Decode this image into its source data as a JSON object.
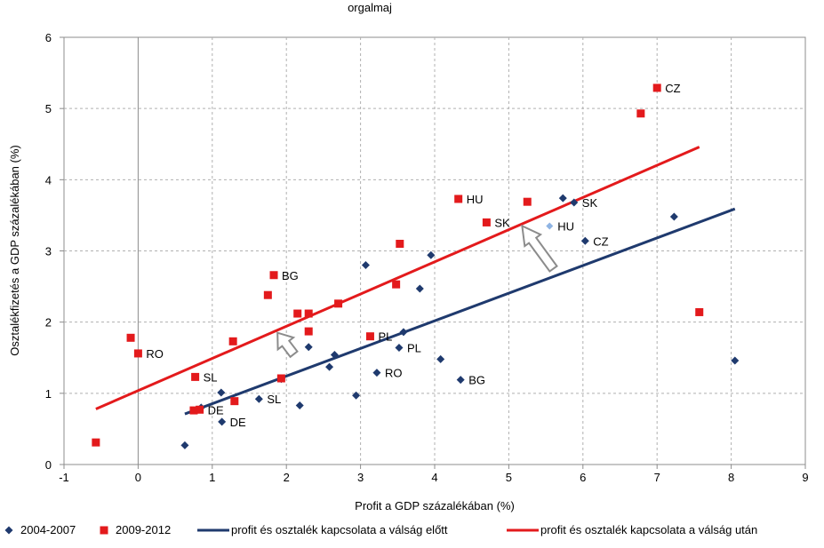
{
  "header": {
    "title_fragment": "orgalmaj"
  },
  "chart_data": {
    "type": "scatter",
    "title": "",
    "xlabel": "Profit a GDP százalékában (%)",
    "ylabel": "Osztalékfizetés a GDP százalékában (%)",
    "xlim": [
      -1,
      9
    ],
    "ylim": [
      0,
      6
    ],
    "x_ticks": [
      "-1",
      "0",
      "1",
      "2",
      "3",
      "4",
      "5",
      "6",
      "7",
      "8",
      "9"
    ],
    "y_ticks": [
      "0",
      "1",
      "2",
      "3",
      "4",
      "5",
      "6"
    ],
    "grid": true,
    "grid_style": "dashed",
    "legend_position": "bottom",
    "series": [
      {
        "name": "2004-2007",
        "marker": "diamond",
        "color": "#1f3a6e",
        "points": [
          {
            "x": 0.63,
            "y": 0.27,
            "label": ""
          },
          {
            "x": 0.85,
            "y": 0.8,
            "label": ""
          },
          {
            "x": 1.13,
            "y": 0.6,
            "label": "DE"
          },
          {
            "x": 1.12,
            "y": 1.01,
            "label": ""
          },
          {
            "x": 1.63,
            "y": 0.92,
            "label": "SL"
          },
          {
            "x": 2.18,
            "y": 0.83,
            "label": ""
          },
          {
            "x": 1.93,
            "y": 1.2,
            "label": ""
          },
          {
            "x": 2.3,
            "y": 1.65,
            "label": ""
          },
          {
            "x": 2.58,
            "y": 1.37,
            "label": ""
          },
          {
            "x": 2.65,
            "y": 1.54,
            "label": ""
          },
          {
            "x": 2.94,
            "y": 0.97,
            "label": ""
          },
          {
            "x": 3.07,
            "y": 2.8,
            "label": ""
          },
          {
            "x": 3.22,
            "y": 1.29,
            "label": "RO"
          },
          {
            "x": 3.52,
            "y": 1.64,
            "label": "PL"
          },
          {
            "x": 3.58,
            "y": 1.86,
            "label": ""
          },
          {
            "x": 3.8,
            "y": 2.47,
            "label": ""
          },
          {
            "x": 3.95,
            "y": 2.94,
            "label": ""
          },
          {
            "x": 4.08,
            "y": 1.48,
            "label": ""
          },
          {
            "x": 4.35,
            "y": 1.19,
            "label": "BG"
          },
          {
            "x": 5.73,
            "y": 3.74,
            "label": ""
          },
          {
            "x": 5.88,
            "y": 3.68,
            "label": "SK"
          },
          {
            "x": 6.03,
            "y": 3.14,
            "label": "CZ"
          },
          {
            "x": 7.23,
            "y": 3.48,
            "label": ""
          },
          {
            "x": 8.05,
            "y": 1.46,
            "label": ""
          }
        ],
        "highlight_point": {
          "x": 5.55,
          "y": 3.35,
          "label": "HU",
          "color": "#8fb4e3"
        }
      },
      {
        "name": "2009-2012",
        "marker": "square",
        "color": "#e31a1c",
        "points": [
          {
            "x": -0.57,
            "y": 0.31,
            "label": ""
          },
          {
            "x": -0.1,
            "y": 1.78,
            "label": ""
          },
          {
            "x": 0.0,
            "y": 1.56,
            "label": "RO"
          },
          {
            "x": 0.75,
            "y": 0.76,
            "label": ""
          },
          {
            "x": 0.83,
            "y": 0.77,
            "label": "DE"
          },
          {
            "x": 0.77,
            "y": 1.23,
            "label": "SL"
          },
          {
            "x": 1.3,
            "y": 0.89,
            "label": ""
          },
          {
            "x": 1.28,
            "y": 1.73,
            "label": ""
          },
          {
            "x": 1.75,
            "y": 2.38,
            "label": ""
          },
          {
            "x": 1.83,
            "y": 2.66,
            "label": "BG"
          },
          {
            "x": 1.93,
            "y": 1.21,
            "label": ""
          },
          {
            "x": 2.15,
            "y": 2.12,
            "label": ""
          },
          {
            "x": 2.3,
            "y": 2.12,
            "label": ""
          },
          {
            "x": 2.3,
            "y": 1.87,
            "label": ""
          },
          {
            "x": 2.7,
            "y": 2.26,
            "label": ""
          },
          {
            "x": 3.13,
            "y": 1.8,
            "label": "PL"
          },
          {
            "x": 3.48,
            "y": 2.53,
            "label": ""
          },
          {
            "x": 3.53,
            "y": 3.1,
            "label": ""
          },
          {
            "x": 4.32,
            "y": 3.73,
            "label": "HU"
          },
          {
            "x": 4.7,
            "y": 3.4,
            "label": "SK"
          },
          {
            "x": 5.25,
            "y": 3.69,
            "label": ""
          },
          {
            "x": 6.78,
            "y": 4.93,
            "label": ""
          },
          {
            "x": 7.0,
            "y": 5.29,
            "label": "CZ"
          },
          {
            "x": 7.57,
            "y": 2.14,
            "label": ""
          }
        ]
      }
    ],
    "trendlines": [
      {
        "name": "profit és osztalék kapcsolata a válság előtt",
        "color": "#1f3a6e",
        "x": [
          0.63,
          8.05
        ],
        "y": [
          0.71,
          3.59
        ]
      },
      {
        "name": "profit és osztalék kapcsolata a válság után",
        "color": "#e31a1c",
        "x": [
          -0.57,
          7.57
        ],
        "y": [
          0.78,
          4.46
        ]
      }
    ],
    "annotations": [
      {
        "type": "arrow",
        "color": "#8c8c8c",
        "from": [
          2.1,
          1.55
        ],
        "to": [
          1.88,
          1.85
        ]
      },
      {
        "type": "arrow",
        "color": "#8c8c8c",
        "from": [
          5.6,
          2.75
        ],
        "to": [
          5.18,
          3.35
        ]
      }
    ]
  }
}
